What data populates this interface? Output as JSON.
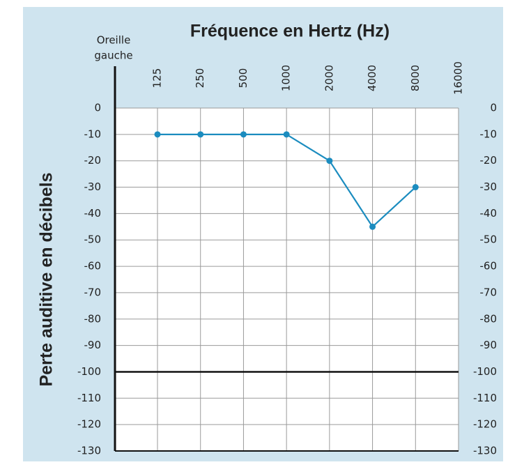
{
  "chart_data": {
    "type": "line",
    "title": "Fréquence en Hertz (Hz)",
    "y_label": "Perte auditive en décibels",
    "corner_label": [
      "Oreille",
      "gauche"
    ],
    "categories": [
      "125",
      "250",
      "500",
      "1000",
      "2000",
      "4000",
      "8000",
      "16000"
    ],
    "series": [
      {
        "name": "Oreille gauche",
        "color": "#1b8cbf",
        "values": [
          -10,
          -10,
          -10,
          -10,
          -20,
          -45,
          -30,
          null
        ]
      }
    ],
    "ylim": [
      -130,
      0
    ],
    "yticks": [
      0,
      -10,
      -20,
      -30,
      -40,
      -50,
      -60,
      -70,
      -80,
      -90,
      -100,
      -110,
      -120,
      -130
    ],
    "y2lim": [
      -130,
      0
    ],
    "y2ticks": [
      0,
      -10,
      -20,
      -30,
      -40,
      -50,
      -60,
      -70,
      -80,
      -90,
      -100,
      -110,
      -120,
      -130
    ],
    "highlight_y": -100,
    "grid": true
  }
}
